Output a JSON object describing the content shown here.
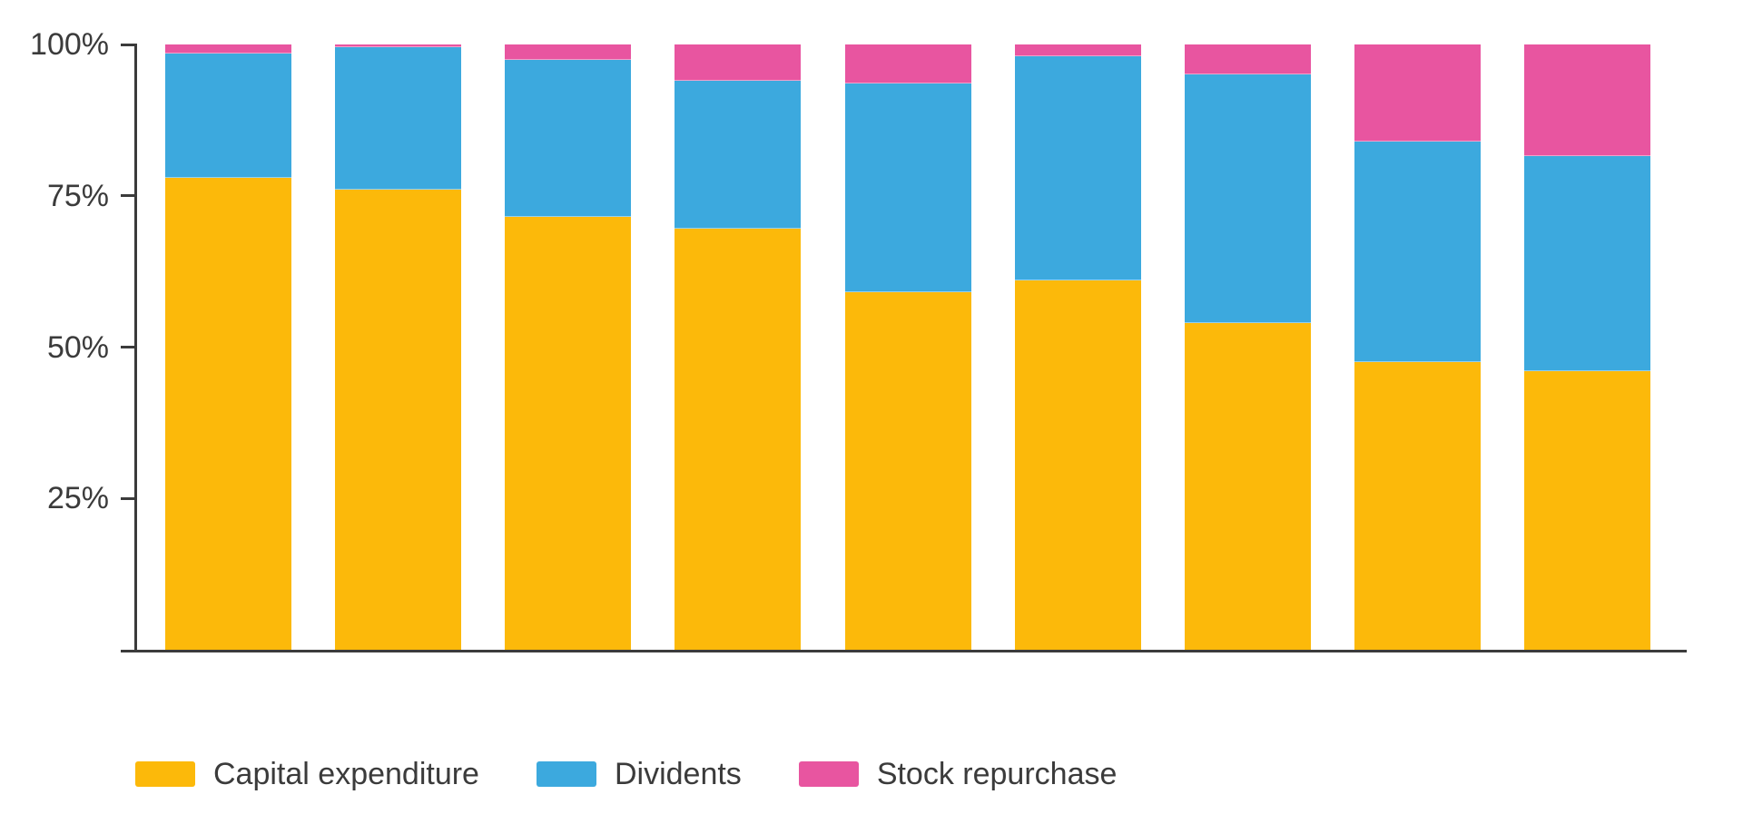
{
  "colors": {
    "capital_expenditure": "#FCB90A",
    "dividents": "#3CA9DE",
    "stock_repurchase": "#E855A0",
    "axis": "#3B3B3B",
    "text": "#3B3B3B",
    "background": "#FFFFFF"
  },
  "chart_data": {
    "type": "bar",
    "variant": "stacked-100-percent",
    "bar_count": 9,
    "categories": [
      "",
      "",
      "",
      "",
      "",
      "",
      "",
      "",
      ""
    ],
    "series": [
      {
        "name": "Capital expenditure",
        "color": "#FCB90A",
        "values": [
          78,
          76,
          71.5,
          69.5,
          59,
          61,
          54,
          47.5,
          46
        ]
      },
      {
        "name": "Dividents",
        "color": "#3CA9DE",
        "values": [
          20.5,
          23.5,
          26,
          24.5,
          34.5,
          37,
          41,
          36.5,
          35.5
        ]
      },
      {
        "name": "Stock repurchase",
        "color": "#E855A0",
        "values": [
          1.5,
          0.5,
          2.5,
          6,
          6.5,
          2,
          5,
          16,
          18.5
        ]
      }
    ],
    "yticks": [
      {
        "label": "100%",
        "value": 100
      },
      {
        "label": "75%",
        "value": 75
      },
      {
        "label": "50%",
        "value": 50
      },
      {
        "label": "25%",
        "value": 25
      }
    ],
    "ylim": [
      0,
      100
    ],
    "xlabel": "",
    "ylabel": "",
    "title": "",
    "grid": false,
    "legend_position": "bottom-left"
  }
}
